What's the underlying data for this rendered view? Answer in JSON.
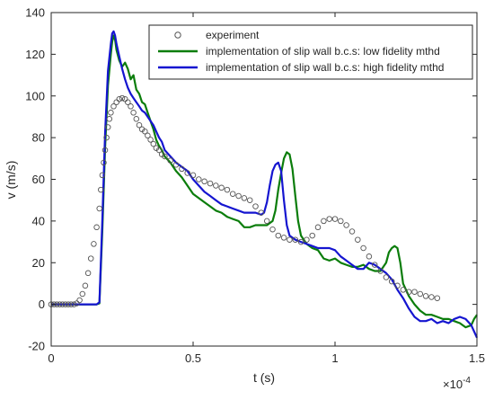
{
  "chart_data": {
    "type": "line",
    "xlabel": "t (s)",
    "ylabel": "v (m/s)",
    "x_exponent_label": "×10",
    "x_exponent_power": "-4",
    "xlim": [
      0,
      1.5
    ],
    "ylim": [
      -20,
      140
    ],
    "x_tick_values": [
      0,
      0.5,
      1,
      1.5
    ],
    "x_tick_labels": [
      "0",
      "0.5",
      "1",
      "1.5"
    ],
    "y_tick_values": [
      -20,
      0,
      20,
      40,
      60,
      80,
      100,
      120,
      140
    ],
    "y_tick_labels": [
      "-20",
      "0",
      "20",
      "40",
      "60",
      "80",
      "100",
      "120",
      "140"
    ],
    "grid": false,
    "legend_position": "top-right",
    "series": [
      {
        "name": "experiment",
        "style": "markers",
        "marker": "open-circle",
        "color": "#555555",
        "points": [
          [
            0.0,
            0
          ],
          [
            0.01,
            0
          ],
          [
            0.02,
            0
          ],
          [
            0.03,
            0
          ],
          [
            0.04,
            0
          ],
          [
            0.05,
            0
          ],
          [
            0.06,
            0
          ],
          [
            0.07,
            0
          ],
          [
            0.08,
            0
          ],
          [
            0.09,
            0.5
          ],
          [
            0.1,
            2
          ],
          [
            0.11,
            5
          ],
          [
            0.12,
            9
          ],
          [
            0.13,
            15
          ],
          [
            0.14,
            22
          ],
          [
            0.15,
            29
          ],
          [
            0.16,
            37
          ],
          [
            0.17,
            46
          ],
          [
            0.175,
            55
          ],
          [
            0.18,
            62
          ],
          [
            0.185,
            68
          ],
          [
            0.19,
            74
          ],
          [
            0.195,
            80
          ],
          [
            0.2,
            85
          ],
          [
            0.205,
            89
          ],
          [
            0.21,
            92
          ],
          [
            0.22,
            95
          ],
          [
            0.23,
            97
          ],
          [
            0.24,
            98.5
          ],
          [
            0.25,
            99
          ],
          [
            0.26,
            98.5
          ],
          [
            0.27,
            97
          ],
          [
            0.28,
            95
          ],
          [
            0.29,
            92
          ],
          [
            0.3,
            89
          ],
          [
            0.31,
            86
          ],
          [
            0.32,
            84
          ],
          [
            0.33,
            83
          ],
          [
            0.34,
            81
          ],
          [
            0.35,
            79
          ],
          [
            0.36,
            77
          ],
          [
            0.37,
            75
          ],
          [
            0.38,
            74
          ],
          [
            0.39,
            72
          ],
          [
            0.4,
            71
          ],
          [
            0.42,
            69
          ],
          [
            0.44,
            67
          ],
          [
            0.46,
            65
          ],
          [
            0.48,
            63
          ],
          [
            0.5,
            62
          ],
          [
            0.52,
            60
          ],
          [
            0.54,
            59
          ],
          [
            0.56,
            58
          ],
          [
            0.58,
            57
          ],
          [
            0.6,
            56
          ],
          [
            0.62,
            55
          ],
          [
            0.64,
            53
          ],
          [
            0.66,
            52
          ],
          [
            0.68,
            51
          ],
          [
            0.7,
            50
          ],
          [
            0.72,
            47
          ],
          [
            0.74,
            44
          ],
          [
            0.76,
            40
          ],
          [
            0.78,
            36
          ],
          [
            0.8,
            33
          ],
          [
            0.82,
            32
          ],
          [
            0.84,
            31
          ],
          [
            0.86,
            31
          ],
          [
            0.88,
            30
          ],
          [
            0.9,
            31
          ],
          [
            0.92,
            33
          ],
          [
            0.94,
            37
          ],
          [
            0.96,
            40
          ],
          [
            0.98,
            41
          ],
          [
            1.0,
            41
          ],
          [
            1.02,
            40
          ],
          [
            1.04,
            38
          ],
          [
            1.06,
            35
          ],
          [
            1.08,
            31
          ],
          [
            1.1,
            27
          ],
          [
            1.12,
            23
          ],
          [
            1.14,
            19
          ],
          [
            1.16,
            16
          ],
          [
            1.18,
            13
          ],
          [
            1.2,
            11
          ],
          [
            1.22,
            9
          ],
          [
            1.24,
            7
          ],
          [
            1.26,
            6
          ],
          [
            1.28,
            6
          ],
          [
            1.3,
            5
          ],
          [
            1.32,
            4
          ],
          [
            1.34,
            3.5
          ],
          [
            1.36,
            3
          ]
        ]
      },
      {
        "name": "implementation of slip wall b.c.s: low fidelity mthd",
        "style": "line",
        "color": "#0b7d0b",
        "points": [
          [
            0.0,
            0
          ],
          [
            0.16,
            0
          ],
          [
            0.17,
            0.5
          ],
          [
            0.18,
            35
          ],
          [
            0.19,
            75
          ],
          [
            0.2,
            105
          ],
          [
            0.21,
            120
          ],
          [
            0.215,
            126
          ],
          [
            0.22,
            129
          ],
          [
            0.225,
            127
          ],
          [
            0.23,
            122
          ],
          [
            0.24,
            117
          ],
          [
            0.25,
            114
          ],
          [
            0.26,
            116
          ],
          [
            0.27,
            113
          ],
          [
            0.28,
            108
          ],
          [
            0.29,
            110
          ],
          [
            0.3,
            103
          ],
          [
            0.31,
            101
          ],
          [
            0.32,
            97
          ],
          [
            0.33,
            96
          ],
          [
            0.34,
            92
          ],
          [
            0.35,
            88
          ],
          [
            0.36,
            84
          ],
          [
            0.37,
            79
          ],
          [
            0.38,
            76
          ],
          [
            0.39,
            74
          ],
          [
            0.4,
            71
          ],
          [
            0.42,
            68
          ],
          [
            0.44,
            64
          ],
          [
            0.46,
            61
          ],
          [
            0.48,
            57
          ],
          [
            0.5,
            53
          ],
          [
            0.52,
            51
          ],
          [
            0.54,
            49
          ],
          [
            0.56,
            47
          ],
          [
            0.58,
            45
          ],
          [
            0.6,
            44
          ],
          [
            0.62,
            42
          ],
          [
            0.64,
            41
          ],
          [
            0.66,
            40
          ],
          [
            0.68,
            37
          ],
          [
            0.7,
            37
          ],
          [
            0.72,
            38
          ],
          [
            0.74,
            38
          ],
          [
            0.76,
            38
          ],
          [
            0.78,
            40
          ],
          [
            0.79,
            45
          ],
          [
            0.8,
            55
          ],
          [
            0.81,
            63
          ],
          [
            0.82,
            70
          ],
          [
            0.83,
            73
          ],
          [
            0.84,
            72
          ],
          [
            0.85,
            65
          ],
          [
            0.86,
            52
          ],
          [
            0.87,
            40
          ],
          [
            0.88,
            33
          ],
          [
            0.9,
            29
          ],
          [
            0.92,
            27
          ],
          [
            0.94,
            26
          ],
          [
            0.96,
            22
          ],
          [
            0.98,
            21
          ],
          [
            1.0,
            22
          ],
          [
            1.02,
            20
          ],
          [
            1.04,
            19
          ],
          [
            1.06,
            18
          ],
          [
            1.08,
            18
          ],
          [
            1.1,
            19
          ],
          [
            1.12,
            17
          ],
          [
            1.14,
            16
          ],
          [
            1.16,
            16
          ],
          [
            1.18,
            20
          ],
          [
            1.19,
            25
          ],
          [
            1.2,
            27
          ],
          [
            1.21,
            28
          ],
          [
            1.22,
            27
          ],
          [
            1.23,
            20
          ],
          [
            1.24,
            10
          ],
          [
            1.26,
            4
          ],
          [
            1.28,
            0
          ],
          [
            1.3,
            -3
          ],
          [
            1.32,
            -5
          ],
          [
            1.34,
            -5
          ],
          [
            1.36,
            -6
          ],
          [
            1.38,
            -7
          ],
          [
            1.4,
            -7
          ],
          [
            1.42,
            -8
          ],
          [
            1.44,
            -9
          ],
          [
            1.46,
            -11
          ],
          [
            1.48,
            -10
          ],
          [
            1.49,
            -7
          ],
          [
            1.5,
            -5
          ]
        ]
      },
      {
        "name": "implementation of slip wall b.c.s: high fidelity mthd",
        "style": "line",
        "color": "#1515d0",
        "points": [
          [
            0.0,
            0
          ],
          [
            0.16,
            0
          ],
          [
            0.17,
            1
          ],
          [
            0.18,
            40
          ],
          [
            0.19,
            82
          ],
          [
            0.2,
            112
          ],
          [
            0.21,
            125
          ],
          [
            0.215,
            130
          ],
          [
            0.22,
            131
          ],
          [
            0.225,
            129
          ],
          [
            0.23,
            125
          ],
          [
            0.24,
            119
          ],
          [
            0.25,
            113
          ],
          [
            0.26,
            108
          ],
          [
            0.27,
            104
          ],
          [
            0.28,
            101
          ],
          [
            0.29,
            99
          ],
          [
            0.3,
            97
          ],
          [
            0.31,
            95
          ],
          [
            0.32,
            93
          ],
          [
            0.33,
            92
          ],
          [
            0.34,
            90
          ],
          [
            0.35,
            88
          ],
          [
            0.36,
            86
          ],
          [
            0.37,
            83
          ],
          [
            0.38,
            80
          ],
          [
            0.39,
            78
          ],
          [
            0.4,
            74
          ],
          [
            0.42,
            71
          ],
          [
            0.44,
            68
          ],
          [
            0.46,
            66
          ],
          [
            0.48,
            64
          ],
          [
            0.5,
            60
          ],
          [
            0.52,
            57
          ],
          [
            0.54,
            54
          ],
          [
            0.56,
            52
          ],
          [
            0.58,
            50
          ],
          [
            0.6,
            48
          ],
          [
            0.62,
            47
          ],
          [
            0.64,
            46
          ],
          [
            0.66,
            45
          ],
          [
            0.68,
            44
          ],
          [
            0.7,
            44
          ],
          [
            0.72,
            44
          ],
          [
            0.74,
            43
          ],
          [
            0.75,
            44
          ],
          [
            0.76,
            49
          ],
          [
            0.77,
            57
          ],
          [
            0.78,
            64
          ],
          [
            0.79,
            67
          ],
          [
            0.8,
            68
          ],
          [
            0.81,
            64
          ],
          [
            0.82,
            50
          ],
          [
            0.83,
            38
          ],
          [
            0.84,
            33
          ],
          [
            0.86,
            31
          ],
          [
            0.88,
            30
          ],
          [
            0.9,
            29
          ],
          [
            0.92,
            28
          ],
          [
            0.94,
            27
          ],
          [
            0.96,
            27
          ],
          [
            0.98,
            27
          ],
          [
            1.0,
            26
          ],
          [
            1.02,
            23
          ],
          [
            1.04,
            21
          ],
          [
            1.06,
            19
          ],
          [
            1.08,
            17
          ],
          [
            1.1,
            17
          ],
          [
            1.12,
            20
          ],
          [
            1.14,
            19
          ],
          [
            1.16,
            17
          ],
          [
            1.18,
            15
          ],
          [
            1.2,
            12
          ],
          [
            1.22,
            7
          ],
          [
            1.24,
            3
          ],
          [
            1.26,
            -2
          ],
          [
            1.28,
            -6
          ],
          [
            1.3,
            -8
          ],
          [
            1.32,
            -8
          ],
          [
            1.34,
            -7
          ],
          [
            1.36,
            -9
          ],
          [
            1.38,
            -8
          ],
          [
            1.4,
            -9
          ],
          [
            1.42,
            -7
          ],
          [
            1.44,
            -6
          ],
          [
            1.46,
            -7
          ],
          [
            1.48,
            -10
          ],
          [
            1.5,
            -16
          ]
        ]
      }
    ]
  }
}
